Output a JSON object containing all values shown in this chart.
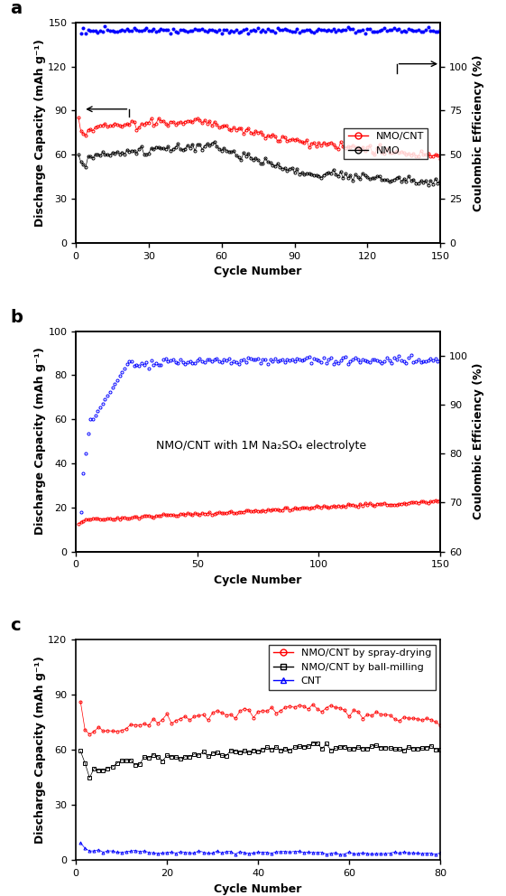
{
  "panel_a": {
    "title_label": "a",
    "xlim": [
      0,
      150
    ],
    "ylim_left": [
      0,
      150
    ],
    "ylim_right": [
      0,
      125
    ],
    "xticks": [
      0,
      30,
      60,
      90,
      120,
      150
    ],
    "yticks_left": [
      0,
      30,
      60,
      90,
      120,
      150
    ],
    "yticks_right": [
      0,
      25,
      50,
      75,
      100
    ],
    "ytick_labels_right": [
      "0",
      "25",
      "50",
      "75",
      "100"
    ],
    "xlabel": "Cycle Number",
    "ylabel_left": "Discharge Capacity (mAh g⁻¹)",
    "ylabel_right": "Coulombic Efficiency (%)",
    "legend_entries": [
      "NMO/CNT",
      "NMO"
    ],
    "legend_colors": [
      "red",
      "black"
    ]
  },
  "panel_b": {
    "title_label": "b",
    "xlim": [
      0,
      150
    ],
    "ylim_left": [
      0,
      100
    ],
    "ylim_right": [
      60,
      105
    ],
    "xticks": [
      0,
      50,
      100,
      150
    ],
    "yticks_left": [
      0,
      20,
      40,
      60,
      80,
      100
    ],
    "yticks_right": [
      60,
      70,
      80,
      90,
      100
    ],
    "xlabel": "Cycle Number",
    "ylabel_left": "Discharge Capacity (mAh g⁻¹)",
    "ylabel_right": "Coulombic Efficiency (%)",
    "annotation": "NMO/CNT with 1M Na₂SO₄ electrolyte"
  },
  "panel_c": {
    "title_label": "c",
    "xlim": [
      0,
      80
    ],
    "ylim": [
      0,
      120
    ],
    "xticks": [
      0,
      20,
      40,
      60,
      80
    ],
    "yticks": [
      0,
      30,
      60,
      90,
      120
    ],
    "xlabel": "Cycle Number",
    "ylabel": "Discharge Capacity (mAh g⁻¹)",
    "legend_entries": [
      "NMO/CNT by spray-drying",
      "NMO/CNT by ball-milling",
      "CNT"
    ],
    "legend_colors": [
      "red",
      "black",
      "blue"
    ]
  },
  "background_color": "#ffffff"
}
